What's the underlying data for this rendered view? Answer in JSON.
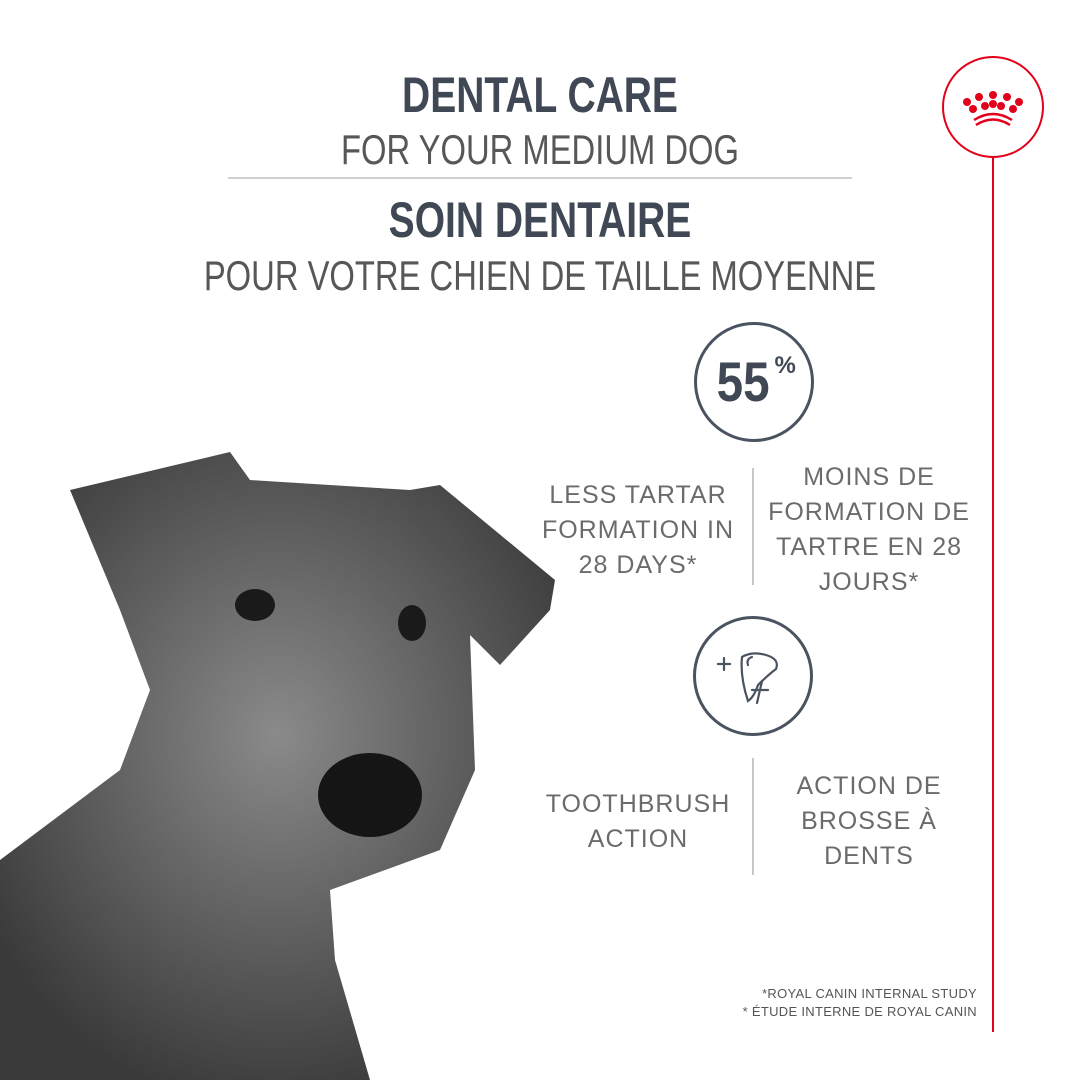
{
  "header": {
    "title_en": "DENTAL CARE",
    "subtitle_en": "FOR YOUR MEDIUM DOG",
    "title_fr": "SOIN DENTAIRE",
    "subtitle_fr": "POUR VOTRE CHIEN DE TAILLE MOYENNE"
  },
  "features": [
    {
      "icon": "55%",
      "stat_value": "55",
      "stat_unit": "%",
      "text_en": "LESS TARTAR FORMATION IN 28 DAYS*",
      "text_fr": "MOINS DE FORMATION DE TARTRE EN 28 JOURS*"
    },
    {
      "icon": "tooth-brush-icon",
      "text_en": "TOOTHBRUSH ACTION",
      "text_fr": "ACTION DE BROSSE À DENTS"
    }
  ],
  "footnotes": [
    "*ROYAL CANIN INTERNAL STUDY",
    "* ÉTUDE INTERNE DE ROYAL CANIN"
  ],
  "brand": {
    "logo": "royal-canin-crown-logo",
    "accent": "#e2001a"
  },
  "colors": {
    "heading": "#3f4854",
    "text": "#6b6b6b"
  }
}
